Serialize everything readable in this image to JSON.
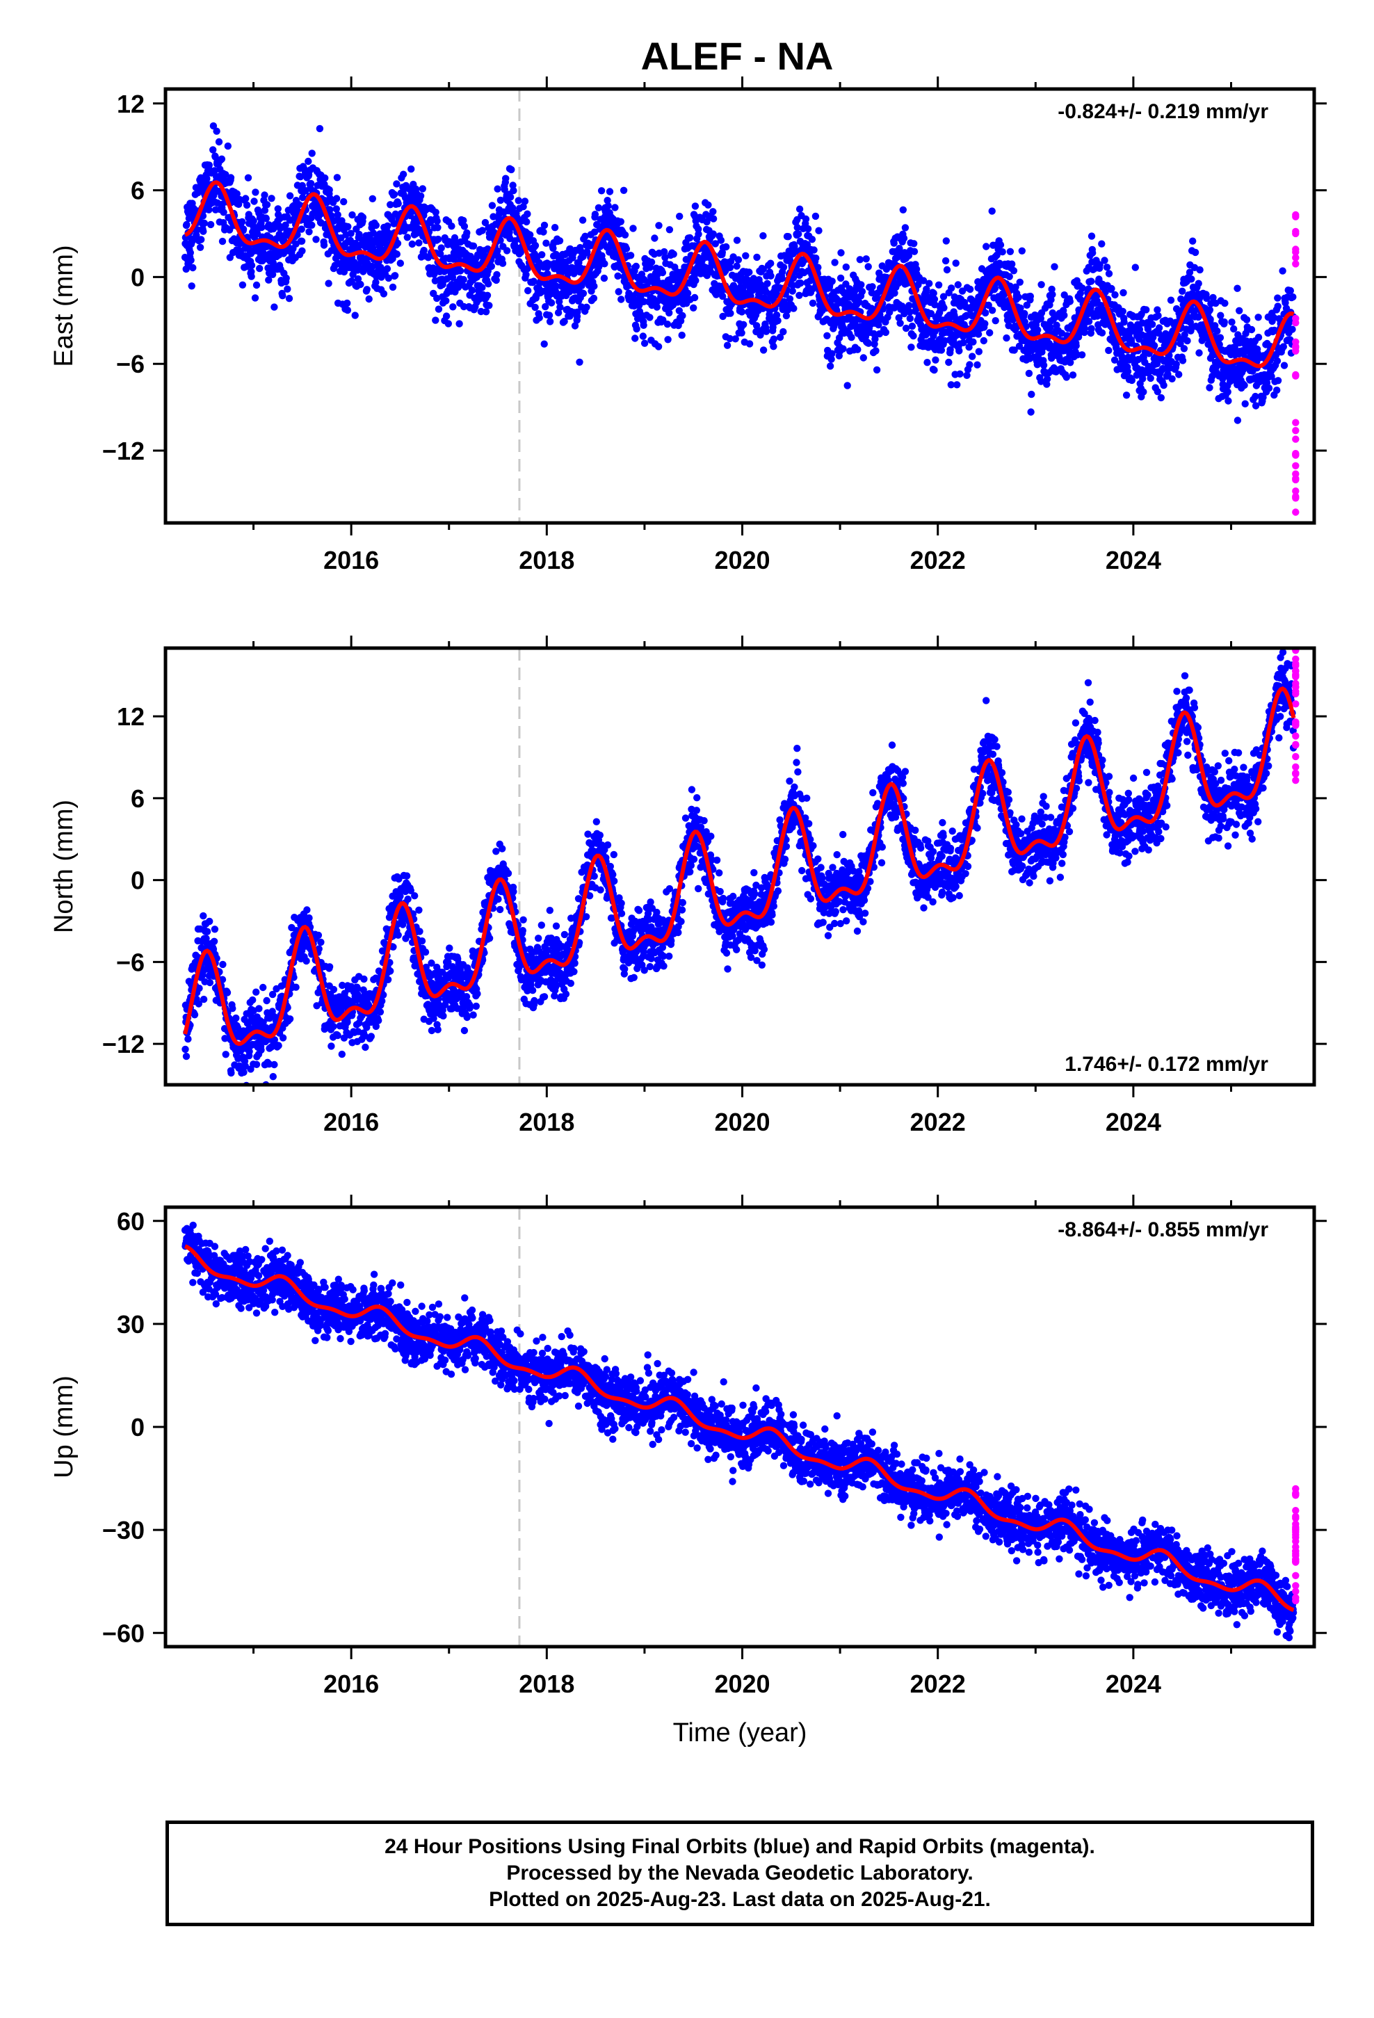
{
  "title": "ALEF - NA",
  "colors": {
    "final_orbits": "#0000ff",
    "rapid_orbits": "#ff00ff",
    "model": "#ff0000",
    "marker_line": "#c8c8c8",
    "frame": "#000000"
  },
  "chart_data": [
    {
      "type": "scatter",
      "panel": "east",
      "ylabel": "East (mm)",
      "xlabel": "",
      "rate_label": "-0.824+/- 0.219 mm/yr",
      "rate_position": "top-right",
      "xlim": [
        2014.1,
        2025.85
      ],
      "ylim": [
        -17,
        13
      ],
      "yticks": [
        12,
        6,
        0,
        -6,
        -12
      ],
      "ytick_labels": [
        "12",
        "6",
        "0",
        "−6",
        "−12"
      ],
      "xticks": [
        2016,
        2018,
        2020,
        2022,
        2024
      ],
      "xtick_labels": [
        "2016",
        "2018",
        "2020",
        "2022",
        "2024"
      ],
      "equipment_change_year": 2017.72,
      "data_start": 2014.3,
      "data_end": 2025.64,
      "model": {
        "rate_mm_per_yr": -0.824,
        "value_at_2014_3": 4.2,
        "annual_amplitude": 1.8,
        "annual_peak_month_fraction": 0.62,
        "noise_sd": 1.5
      },
      "series": [
        {
          "name": "Final Orbits",
          "values": []
        },
        {
          "name": "Rapid Orbits",
          "y_range": [
            -16.5,
            4.5
          ]
        }
      ]
    },
    {
      "type": "scatter",
      "panel": "north",
      "ylabel": "North (mm)",
      "xlabel": "",
      "rate_label": "1.746+/- 0.172 mm/yr",
      "rate_position": "bottom-right",
      "xlim": [
        2014.1,
        2025.85
      ],
      "ylim": [
        -15,
        17
      ],
      "yticks": [
        12,
        6,
        0,
        -6,
        -12
      ],
      "ytick_labels": [
        "12",
        "6",
        "0",
        "−6",
        "−12"
      ],
      "xticks": [
        2016,
        2018,
        2020,
        2022,
        2024
      ],
      "xtick_labels": [
        "2016",
        "2018",
        "2020",
        "2022",
        "2024"
      ],
      "equipment_change_year": 2017.72,
      "data_start": 2014.3,
      "data_end": 2025.64,
      "model": {
        "rate_mm_per_yr": 1.746,
        "value_at_2014_3": -10.5,
        "annual_amplitude": 3.4,
        "annual_peak_month_fraction": 0.52,
        "noise_sd": 1.2
      },
      "series": [
        {
          "name": "Final Orbits",
          "values": []
        },
        {
          "name": "Rapid Orbits",
          "y_range": [
            7,
            17
          ]
        }
      ]
    },
    {
      "type": "scatter",
      "panel": "up",
      "ylabel": "Up (mm)",
      "xlabel": "Time (year)",
      "rate_label": "-8.864+/- 0.855 mm/yr",
      "rate_position": "top-right",
      "xlim": [
        2014.1,
        2025.85
      ],
      "ylim": [
        -64,
        64
      ],
      "yticks": [
        60,
        30,
        0,
        -30,
        -60
      ],
      "ytick_labels": [
        "60",
        "30",
        "0",
        "−30",
        "−60"
      ],
      "xticks": [
        2016,
        2018,
        2020,
        2022,
        2024
      ],
      "xtick_labels": [
        "2016",
        "2018",
        "2020",
        "2022",
        "2024"
      ],
      "equipment_change_year": 2017.72,
      "data_start": 2014.3,
      "data_end": 2025.64,
      "model": {
        "rate_mm_per_yr": -8.864,
        "value_at_2014_3": 49,
        "annual_amplitude": 2.5,
        "annual_peak_month_fraction": 0.3,
        "noise_sd": 4
      },
      "series": [
        {
          "name": "Final Orbits",
          "values": []
        },
        {
          "name": "Rapid Orbits",
          "y_range": [
            -52,
            -18
          ]
        }
      ]
    }
  ],
  "footer": {
    "line1": "24 Hour Positions Using Final Orbits (blue) and Rapid Orbits (magenta).",
    "line2": "Processed by the Nevada Geodetic Laboratory.",
    "line3": "Plotted on 2025-Aug-23. Last data on 2025-Aug-21."
  }
}
